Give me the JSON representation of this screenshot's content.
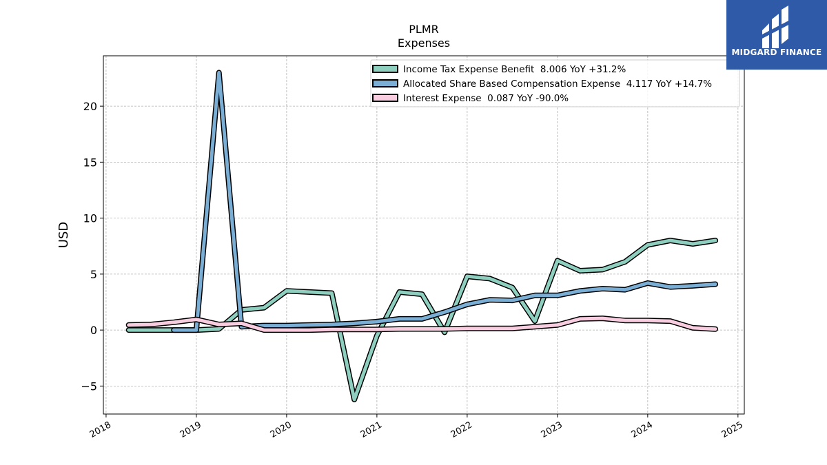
{
  "chart_data": {
    "type": "line",
    "title": "PLMR",
    "subtitle": "Expenses",
    "xlabel": "",
    "ylabel": "USD",
    "xlim": [
      2017.97,
      2025.07
    ],
    "ylim": [
      -7.5,
      24.5
    ],
    "x_ticks": [
      2018,
      2019,
      2020,
      2021,
      2022,
      2023,
      2024,
      2025
    ],
    "x_tick_labels": [
      "2018",
      "2019",
      "2020",
      "2021",
      "2022",
      "2023",
      "2024",
      "2025"
    ],
    "y_ticks": [
      -5,
      0,
      5,
      10,
      15,
      20
    ],
    "y_tick_labels": [
      "−5",
      "0",
      "5",
      "10",
      "15",
      "20"
    ],
    "grid": true,
    "legend_position": "top-right",
    "series": [
      {
        "name": "Income Tax Expense Benefit  8.006 YoY +31.2%",
        "color": "#8ecfc0",
        "points": [
          [
            2018.25,
            0.0
          ],
          [
            2018.5,
            0.0
          ],
          [
            2018.75,
            0.0
          ],
          [
            2019.0,
            0.0
          ],
          [
            2019.25,
            0.1
          ],
          [
            2019.5,
            1.8
          ],
          [
            2019.75,
            2.0
          ],
          [
            2020.0,
            3.5
          ],
          [
            2020.25,
            3.4
          ],
          [
            2020.5,
            3.3
          ],
          [
            2020.75,
            -6.2
          ],
          [
            2021.0,
            -0.5
          ],
          [
            2021.25,
            3.4
          ],
          [
            2021.5,
            3.2
          ],
          [
            2021.75,
            -0.2
          ],
          [
            2022.0,
            4.8
          ],
          [
            2022.25,
            4.6
          ],
          [
            2022.5,
            3.8
          ],
          [
            2022.75,
            0.8
          ],
          [
            2023.0,
            6.2
          ],
          [
            2023.25,
            5.3
          ],
          [
            2023.5,
            5.4
          ],
          [
            2023.75,
            6.1
          ],
          [
            2024.0,
            7.6
          ],
          [
            2024.25,
            8.0
          ],
          [
            2024.5,
            7.7
          ],
          [
            2024.75,
            8.0
          ]
        ]
      },
      {
        "name": "Allocated Share Based Compensation Expense  4.117 YoY +14.7%",
        "color": "#7aaed4",
        "points": [
          [
            2018.75,
            0.0
          ],
          [
            2019.0,
            0.0
          ],
          [
            2019.25,
            23.0
          ],
          [
            2019.5,
            0.3
          ],
          [
            2019.75,
            0.4
          ],
          [
            2020.0,
            0.4
          ],
          [
            2020.25,
            0.45
          ],
          [
            2020.5,
            0.5
          ],
          [
            2020.75,
            0.6
          ],
          [
            2021.0,
            0.75
          ],
          [
            2021.25,
            1.0
          ],
          [
            2021.5,
            1.0
          ],
          [
            2021.75,
            1.6
          ],
          [
            2022.0,
            2.3
          ],
          [
            2022.25,
            2.7
          ],
          [
            2022.5,
            2.65
          ],
          [
            2022.75,
            3.1
          ],
          [
            2023.0,
            3.1
          ],
          [
            2023.25,
            3.5
          ],
          [
            2023.5,
            3.7
          ],
          [
            2023.75,
            3.6
          ],
          [
            2024.0,
            4.2
          ],
          [
            2024.25,
            3.85
          ],
          [
            2024.5,
            3.95
          ],
          [
            2024.75,
            4.1
          ]
        ]
      },
      {
        "name": "Interest Expense  0.087 YoY -90.0%",
        "color": "#f9cde0",
        "points": [
          [
            2018.25,
            0.45
          ],
          [
            2018.5,
            0.5
          ],
          [
            2018.75,
            0.7
          ],
          [
            2019.0,
            0.95
          ],
          [
            2019.25,
            0.5
          ],
          [
            2019.5,
            0.6
          ],
          [
            2019.75,
            0.0
          ],
          [
            2020.0,
            0.0
          ],
          [
            2020.25,
            0.0
          ],
          [
            2020.5,
            0.05
          ],
          [
            2020.75,
            0.05
          ],
          [
            2021.0,
            0.05
          ],
          [
            2021.25,
            0.1
          ],
          [
            2021.5,
            0.1
          ],
          [
            2021.75,
            0.1
          ],
          [
            2022.0,
            0.15
          ],
          [
            2022.25,
            0.15
          ],
          [
            2022.5,
            0.15
          ],
          [
            2022.75,
            0.3
          ],
          [
            2023.0,
            0.45
          ],
          [
            2023.25,
            1.0
          ],
          [
            2023.5,
            1.05
          ],
          [
            2023.75,
            0.85
          ],
          [
            2024.0,
            0.85
          ],
          [
            2024.25,
            0.8
          ],
          [
            2024.5,
            0.2
          ],
          [
            2024.75,
            0.09
          ]
        ]
      }
    ]
  },
  "logo": {
    "text": "MIDGARD FINANCE",
    "background": "#2f5aa8"
  }
}
